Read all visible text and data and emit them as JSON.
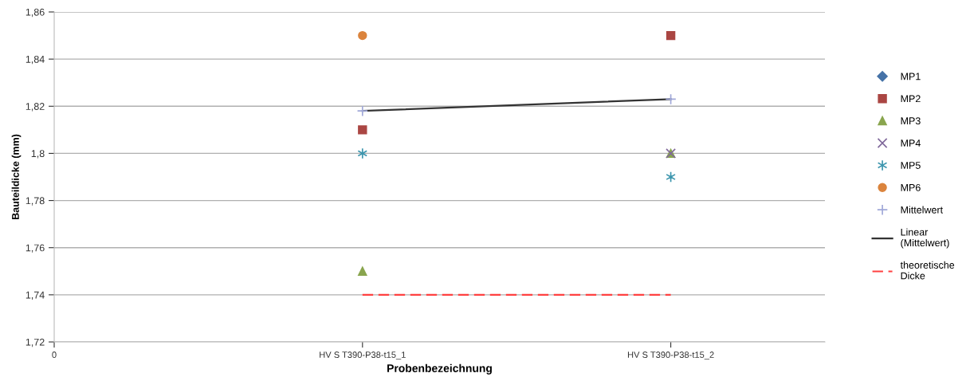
{
  "chart_data": {
    "type": "scatter",
    "xlabel": "Probenbezeichnung",
    "ylabel": "Bauteildicke (mm)",
    "categories": [
      "0",
      "HV S T390-P38-t15_1",
      "HV S T390-P38-t15_2"
    ],
    "ylim": [
      1.72,
      1.86
    ],
    "yticks": [
      {
        "value": 1.72,
        "label": "1,72"
      },
      {
        "value": 1.74,
        "label": "1,74"
      },
      {
        "value": 1.76,
        "label": "1,76"
      },
      {
        "value": 1.78,
        "label": "1,78"
      },
      {
        "value": 1.8,
        "label": "1,8"
      },
      {
        "value": 1.82,
        "label": "1,82"
      },
      {
        "value": 1.84,
        "label": "1,84"
      },
      {
        "value": 1.86,
        "label": "1,86"
      }
    ],
    "grid": "y",
    "legend": "right",
    "series": [
      {
        "name": "MP1",
        "marker": "diamond",
        "color": "#4572a7",
        "values": [
          null,
          null,
          null
        ]
      },
      {
        "name": "MP2",
        "marker": "square",
        "color": "#aa4643",
        "values": [
          null,
          1.81,
          1.85
        ]
      },
      {
        "name": "MP3",
        "marker": "triangle",
        "color": "#89a54e",
        "values": [
          null,
          1.75,
          1.8
        ]
      },
      {
        "name": "MP4",
        "marker": "cross",
        "color": "#80699b",
        "values": [
          null,
          null,
          1.8
        ]
      },
      {
        "name": "MP5",
        "color": "#3d96ae",
        "values": [
          null,
          1.8,
          1.79
        ]
      },
      {
        "name": "MP6",
        "marker": "circle",
        "color": "#db843d",
        "values": [
          null,
          1.85,
          null
        ]
      },
      {
        "name": "Mittelwert",
        "marker": "plus",
        "color": "#a0a8d8",
        "values": [
          null,
          1.818,
          1.823
        ]
      },
      {
        "name": "Linear (Mittelwert)",
        "type": "line",
        "line_style": "solid",
        "color": "#333333",
        "values": [
          null,
          1.818,
          1.823
        ]
      },
      {
        "name": "theoretische Dicke",
        "type": "line",
        "line_style": "dashed",
        "color": "#ff4040",
        "values": [
          null,
          1.74,
          1.74
        ]
      }
    ]
  }
}
